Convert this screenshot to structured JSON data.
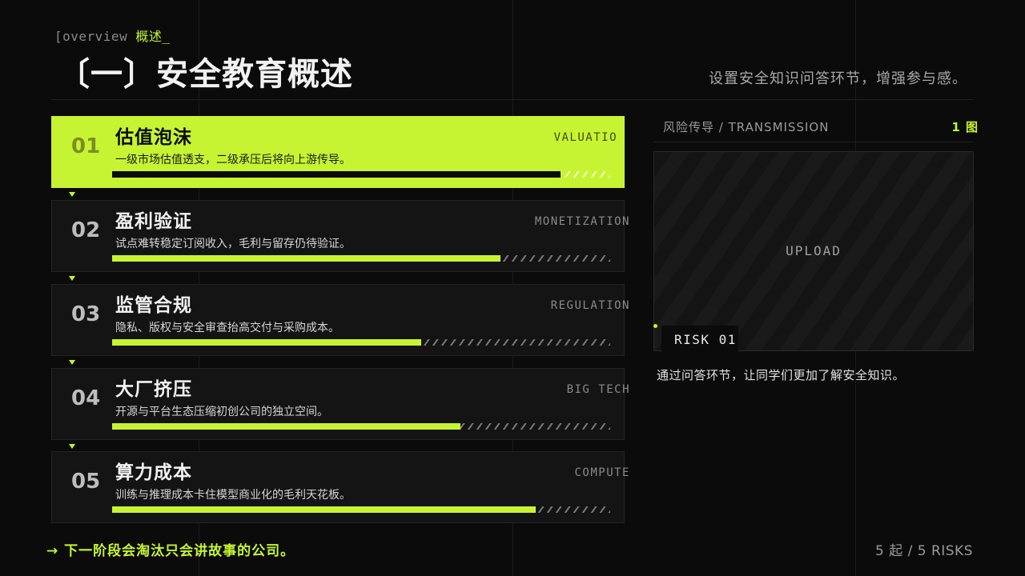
{
  "header": {
    "tag_prefix": "[overview ",
    "tag_accent": "概述_",
    "title": "〔一〕安全教育概述",
    "subtitle": "设置安全知识问答环节，增强参与感。"
  },
  "items": [
    {
      "num": "01",
      "name": "估值泡沫",
      "desc": "一级市场估值透支，二级承压后将向上游传导。",
      "code": "VALUATIO",
      "progress": 0.9,
      "active": true
    },
    {
      "num": "02",
      "name": "盈利验证",
      "desc": "试点难转稳定订阅收入，毛利与留存仍待验证。",
      "code": "MONETIZATION",
      "progress": 0.78,
      "active": false
    },
    {
      "num": "03",
      "name": "监管合规",
      "desc": "隐私、版权与安全审查抬高交付与采购成本。",
      "code": "REGULATION",
      "progress": 0.62,
      "active": false
    },
    {
      "num": "04",
      "name": "大厂挤压",
      "desc": "开源与平台生态压缩初创公司的独立空间。",
      "code": "BIG TECH",
      "progress": 0.7,
      "active": false
    },
    {
      "num": "05",
      "name": "算力成本",
      "desc": "训练与推理成本卡住模型商业化的毛利天花板。",
      "code": "COMPUTE",
      "progress": 0.85,
      "active": false
    }
  ],
  "right_panel": {
    "label": "风险传导 / TRANSMISSION",
    "count": "1 图",
    "upload_text": "UPLOAD",
    "risk_tag": "RISK 01",
    "caption": "通过问答环节，让同学们更加了解安全知识。"
  },
  "footer": {
    "left": "→ 下一阶段会淘汰只会讲故事的公司。",
    "right": "5 起 / 5 RISKS"
  },
  "colors": {
    "accent": "#c6f432",
    "background": "#0b0b0b",
    "card": "#141414"
  }
}
